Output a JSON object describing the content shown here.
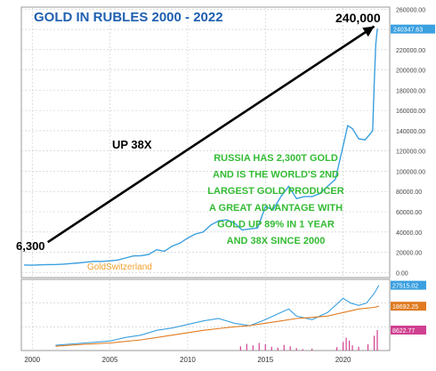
{
  "chart_data": [
    {
      "type": "line",
      "title": "GOLD IN RUBLES   2000 - 2022",
      "xlabel": "",
      "ylabel": "",
      "x_ticks": [
        "2000",
        "2005",
        "2010",
        "2015",
        "2020"
      ],
      "y_ticks": [
        "0.00",
        "20000.00",
        "40000.00",
        "60000.00",
        "80000.00",
        "100000.00",
        "120000.00",
        "140000.00",
        "160000.00",
        "180000.00",
        "200000.00",
        "220000.00",
        "240000.00",
        "260000.00"
      ],
      "xlim": [
        1999.3,
        2023.0
      ],
      "ylim": [
        -5000,
        262000
      ],
      "grid": true,
      "last_value_label": "240347.63",
      "series": [
        {
          "color": "#3aa0e0",
          "points": [
            [
              1999.5,
              7400
            ],
            [
              2000.0,
              7200
            ],
            [
              2000.5,
              7600
            ],
            [
              2001.0,
              7800
            ],
            [
              2001.5,
              7900
            ],
            [
              2002.0,
              8300
            ],
            [
              2002.5,
              8900
            ],
            [
              2003.0,
              9500
            ],
            [
              2003.5,
              10300
            ],
            [
              2004.0,
              11000
            ],
            [
              2004.5,
              11000
            ],
            [
              2005.0,
              11500
            ],
            [
              2005.5,
              12300
            ],
            [
              2006.0,
              14300
            ],
            [
              2006.5,
              16300
            ],
            [
              2007.0,
              16600
            ],
            [
              2007.5,
              17800
            ],
            [
              2008.0,
              22500
            ],
            [
              2008.5,
              21000
            ],
            [
              2009.0,
              26000
            ],
            [
              2009.5,
              29000
            ],
            [
              2010.0,
              34000
            ],
            [
              2010.5,
              38000
            ],
            [
              2011.0,
              40000
            ],
            [
              2011.5,
              47000
            ],
            [
              2012.0,
              51000
            ],
            [
              2012.5,
              52000
            ],
            [
              2013.0,
              49000
            ],
            [
              2013.5,
              42000
            ],
            [
              2014.0,
              43000
            ],
            [
              2014.5,
              44000
            ],
            [
              2015.0,
              65000
            ],
            [
              2015.5,
              62000
            ],
            [
              2016.0,
              75000
            ],
            [
              2016.5,
              85000
            ],
            [
              2017.0,
              73000
            ],
            [
              2017.5,
              75000
            ],
            [
              2018.0,
              75000
            ],
            [
              2018.5,
              78000
            ],
            [
              2019.0,
              85000
            ],
            [
              2019.5,
              92000
            ],
            [
              2020.0,
              125000
            ],
            [
              2020.3,
              145000
            ],
            [
              2020.6,
              142000
            ],
            [
              2021.0,
              132000
            ],
            [
              2021.4,
              131000
            ],
            [
              2021.7,
              136000
            ],
            [
              2021.9,
              140000
            ],
            [
              2022.0,
              185000
            ],
            [
              2022.1,
              225000
            ],
            [
              2022.2,
              240348
            ]
          ]
        }
      ],
      "annotations": [
        {
          "text": "240,000",
          "color": "#000000"
        },
        {
          "text": "6,300",
          "color": "#000000"
        },
        {
          "text": "UP 38X",
          "color": "#000000"
        },
        {
          "text": "GoldSwitzerland",
          "color": "#f0a030"
        },
        {
          "lines": [
            "RUSSIA HAS 2,300T GOLD",
            "AND IS THE WORLD'S 2ND",
            "LARGEST GOLD PRODUCER",
            "A GREAT ADVANTAGE WITH",
            "GOLD UP 89% IN 1 YEAR",
            "AND 38X SINCE 2000"
          ],
          "color": "#33bb33"
        }
      ],
      "arrow": {
        "from": [
          2001.0,
          30000
        ],
        "to": [
          2022.0,
          243000
        ],
        "color": "#000000"
      }
    },
    {
      "type": "line",
      "title": "",
      "xlim": [
        1999.3,
        2023.0
      ],
      "ylim": [
        0,
        30000
      ],
      "grid": true,
      "value_labels": [
        {
          "text": "27515.02",
          "color": "#3aa0e0"
        },
        {
          "text": "18692.25",
          "color": "#e07b20"
        },
        {
          "text": "8622.77",
          "color": "#d04090"
        }
      ],
      "series": [
        {
          "color": "#3aa0e0",
          "points": [
            [
              2001.5,
              2200
            ],
            [
              2003,
              3000
            ],
            [
              2005,
              4000
            ],
            [
              2006,
              5500
            ],
            [
              2007,
              6500
            ],
            [
              2008,
              8500
            ],
            [
              2009,
              9500
            ],
            [
              2010,
              11000
            ],
            [
              2011,
              12500
            ],
            [
              2012,
              13500
            ],
            [
              2013,
              11500
            ],
            [
              2014,
              10500
            ],
            [
              2015,
              13000
            ],
            [
              2016,
              16000
            ],
            [
              2016.5,
              17500
            ],
            [
              2017,
              14500
            ],
            [
              2018,
              13000
            ],
            [
              2019,
              16000
            ],
            [
              2020,
              22000
            ],
            [
              2020.5,
              20000
            ],
            [
              2021,
              19000
            ],
            [
              2021.5,
              20000
            ],
            [
              2022,
              24000
            ],
            [
              2022.3,
              27515
            ]
          ]
        },
        {
          "color": "#e07b20",
          "points": [
            [
              2001.5,
              1800
            ],
            [
              2003,
              2500
            ],
            [
              2005,
              3200
            ],
            [
              2007,
              4500
            ],
            [
              2009,
              6500
            ],
            [
              2011,
              8500
            ],
            [
              2013,
              10000
            ],
            [
              2014,
              10500
            ],
            [
              2015,
              11500
            ],
            [
              2016,
              12500
            ],
            [
              2017,
              13500
            ],
            [
              2018,
              14000
            ],
            [
              2019,
              14500
            ],
            [
              2020,
              16000
            ],
            [
              2021,
              17500
            ],
            [
              2022,
              18200
            ],
            [
              2022.3,
              18692
            ]
          ]
        },
        {
          "color": "#d04090",
          "type": "bars",
          "points": [
            [
              2013.4,
              1800
            ],
            [
              2013.8,
              2800
            ],
            [
              2014.2,
              2200
            ],
            [
              2014.6,
              3200
            ],
            [
              2015.0,
              2600
            ],
            [
              2015.4,
              1600
            ],
            [
              2015.8,
              1200
            ],
            [
              2016.2,
              2400
            ],
            [
              2016.6,
              1800
            ],
            [
              2017.0,
              1000
            ],
            [
              2017.4,
              600
            ],
            [
              2018.0,
              800
            ],
            [
              2019.6,
              1400
            ],
            [
              2020.0,
              3600
            ],
            [
              2020.2,
              5400
            ],
            [
              2020.4,
              4200
            ],
            [
              2020.6,
              2200
            ],
            [
              2021.0,
              1600
            ],
            [
              2021.6,
              2600
            ],
            [
              2022.0,
              6200
            ],
            [
              2022.2,
              8623
            ]
          ]
        }
      ]
    }
  ]
}
